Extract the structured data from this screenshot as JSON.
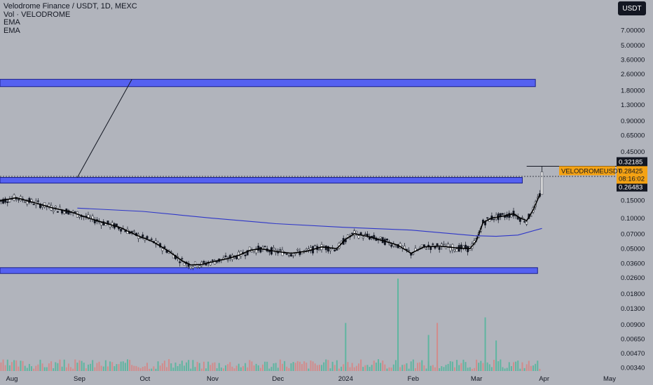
{
  "header": {
    "title": "Velodrome Finance / USDT, 1D, MEXC",
    "vol_label": "Vol · VELODROME",
    "ema1": "EMA",
    "ema2": "EMA",
    "currency": "USDT"
  },
  "chart_data": {
    "type": "line",
    "title": "Velodrome Finance / USDT, 1D, MEXC",
    "y_scale": "log",
    "ylim": [
      0.003,
      10
    ],
    "y_ticks": [
      "7.00000",
      "5.00000",
      "3.60000",
      "2.60000",
      "1.80000",
      "1.30000",
      "0.90000",
      "0.65000",
      "0.45000",
      "0.15000",
      "0.10000",
      "0.07000",
      "0.05000",
      "0.03600",
      "0.02600",
      "0.01800",
      "0.01300",
      "0.00900",
      "0.00650",
      "0.00470",
      "0.00340"
    ],
    "x_ticks": [
      "Aug",
      "Sep",
      "Oct",
      "Nov",
      "Dec",
      "2024",
      "Feb",
      "Mar",
      "Apr",
      "May"
    ],
    "price_tags": {
      "high": "0.32185",
      "symbol": "VELODROMEUSDT",
      "last": "0.28425",
      "countdown": "08:16:02",
      "low": "0.26483"
    },
    "zones": [
      {
        "name": "resistance-zone-upper",
        "y_range": [
          1.95,
          2.3
        ],
        "end": "2024-03-28"
      },
      {
        "name": "resistance-zone-middle",
        "y_range": [
          0.22,
          0.25
        ],
        "end": "2024-03-22"
      },
      {
        "name": "support-zone-lower",
        "y_range": [
          0.0285,
          0.0325
        ],
        "end": "2024-03-29"
      }
    ],
    "trendline": {
      "from": [
        "2023-08-31",
        0.25
      ],
      "to": [
        "2023-09-25",
        2.3
      ]
    },
    "series": [
      {
        "name": "EMA",
        "color": "#000000",
        "points": [
          [
            "2023-07-25",
            0.145
          ],
          [
            "2023-08-03",
            0.158
          ],
          [
            "2023-08-12",
            0.14
          ],
          [
            "2023-08-20",
            0.125
          ],
          [
            "2023-08-28",
            0.115
          ],
          [
            "2023-09-05",
            0.1
          ],
          [
            "2023-09-12",
            0.09
          ],
          [
            "2023-09-20",
            0.08
          ],
          [
            "2023-09-27",
            0.068
          ],
          [
            "2023-10-05",
            0.058
          ],
          [
            "2023-10-12",
            0.047
          ],
          [
            "2023-10-18",
            0.038
          ],
          [
            "2023-10-22",
            0.0345
          ],
          [
            "2023-10-27",
            0.035
          ],
          [
            "2023-11-03",
            0.038
          ],
          [
            "2023-11-08",
            0.04
          ],
          [
            "2023-11-13",
            0.043
          ],
          [
            "2023-11-18",
            0.048
          ],
          [
            "2023-11-23",
            0.05
          ],
          [
            "2023-11-30",
            0.047
          ],
          [
            "2023-12-07",
            0.045
          ],
          [
            "2023-12-14",
            0.047
          ],
          [
            "2023-12-21",
            0.052
          ],
          [
            "2023-12-28",
            0.05
          ],
          [
            "2024-01-01",
            0.062
          ],
          [
            "2024-01-05",
            0.07
          ],
          [
            "2024-01-11",
            0.066
          ],
          [
            "2024-01-18",
            0.06
          ],
          [
            "2024-01-25",
            0.054
          ],
          [
            "2024-01-31",
            0.045
          ],
          [
            "2024-02-06",
            0.052
          ],
          [
            "2024-02-13",
            0.053
          ],
          [
            "2024-02-20",
            0.051
          ],
          [
            "2024-02-27",
            0.05
          ],
          [
            "2024-03-01",
            0.06
          ],
          [
            "2024-03-04",
            0.09
          ],
          [
            "2024-03-08",
            0.1
          ],
          [
            "2024-03-13",
            0.104
          ],
          [
            "2024-03-18",
            0.11
          ],
          [
            "2024-03-21",
            0.1
          ],
          [
            "2024-03-24",
            0.094
          ],
          [
            "2024-03-27",
            0.12
          ],
          [
            "2024-03-30",
            0.17
          ]
        ]
      },
      {
        "name": "EMA",
        "color": "#2e36c9",
        "points": [
          [
            "2023-08-31",
            0.125
          ],
          [
            "2023-09-30",
            0.116
          ],
          [
            "2023-10-31",
            0.1
          ],
          [
            "2023-11-30",
            0.088
          ],
          [
            "2023-12-31",
            0.081
          ],
          [
            "2024-01-31",
            0.076
          ],
          [
            "2024-02-29",
            0.067
          ],
          [
            "2024-03-10",
            0.066
          ],
          [
            "2024-03-20",
            0.068
          ],
          [
            "2024-03-31",
            0.079
          ]
        ]
      }
    ],
    "volume_spikes": [
      {
        "date": "2024-01-25",
        "color": "#5fb5a0",
        "relative": 1.0
      },
      {
        "date": "2024-03-05",
        "color": "#5fb5a0",
        "relative": 0.58
      },
      {
        "date": "2024-01-01",
        "color": "#5fb5a0",
        "relative": 0.52
      },
      {
        "date": "2024-02-12",
        "color": "#d28b8b",
        "relative": 0.52
      },
      {
        "date": "2024-02-08",
        "color": "#5fb5a0",
        "relative": 0.39
      },
      {
        "date": "2024-03-10",
        "color": "#5fb5a0",
        "relative": 0.33
      }
    ]
  }
}
